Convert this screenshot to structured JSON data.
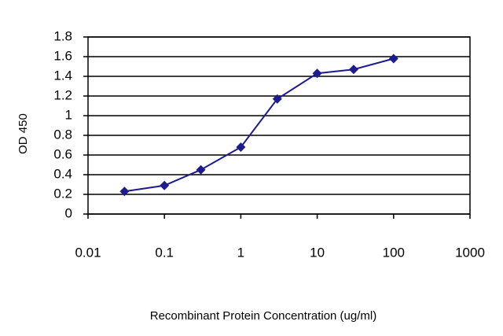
{
  "chart_data": {
    "type": "line",
    "x_label": "Recombinant Protein Concentration (ug/ml)",
    "y_label": "OD 450",
    "x": [
      0.03,
      0.1,
      0.3,
      1,
      3,
      10,
      30,
      100
    ],
    "series": [
      {
        "name": "OD 450",
        "color": "#1c1c8e",
        "values": [
          0.23,
          0.29,
          0.45,
          0.68,
          1.17,
          1.43,
          1.47,
          1.58
        ]
      }
    ],
    "xlim": [
      0.01,
      1000
    ],
    "xticks": [
      0.01,
      0.1,
      1,
      10,
      100,
      1000
    ],
    "xscale": "log",
    "ylim": [
      0,
      1.8
    ],
    "yticks": [
      0,
      0.2,
      0.4,
      0.6,
      0.8,
      1,
      1.2,
      1.4,
      1.6,
      1.8
    ],
    "grid": true
  }
}
